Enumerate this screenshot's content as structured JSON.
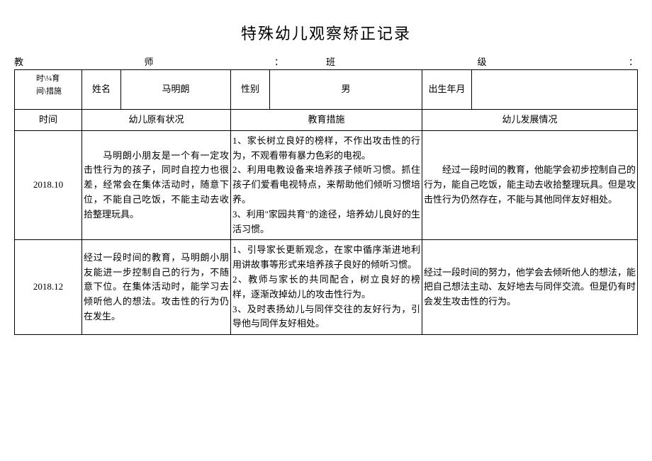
{
  "title": "特殊幼儿观察矫正记录",
  "meta": {
    "teacher_label_l": "教",
    "teacher_label_r": "师",
    "teacher_colon": "：",
    "class_label_l": "班",
    "class_label_r": "级",
    "class_colon": "："
  },
  "header": {
    "diag_top": "时\\¼育\n间\\措施",
    "name_label": "姓名",
    "name_value": "马明朗",
    "gender_label": "性别",
    "gender_value": "男",
    "birth_label": "出生年月",
    "birth_value": ""
  },
  "cols": {
    "time": "时间",
    "original": "幼儿原有状况",
    "measures": "教育措施",
    "development": "幼儿发展情况"
  },
  "rows": [
    {
      "time": "2018.10",
      "original": "　　马明朗小朋友是一个有一定攻击性行为的孩子，同时自控力也很差，经常会在集体活动时，随意下位，不能自己吃饭，不能主动去收拾整理玩具。",
      "measures": "1、家长树立良好的榜样，不作出攻击性的行为，不观看带有暴力色彩的电视。\n2、利用电教设备来培养孩子倾听习惯。抓住孩子们爱看电视特点，来帮助他们倾听习惯培养。\n3、利用\"家园共育\"的途径，培养幼儿良好的生活习惯。",
      "development": "　　经过一段时间的教育，他能学会初步控制自己的行为，能自己吃饭，能主动去收拾整理玩具。但是攻击性行为仍然存在，不能与其他同伴友好相处。"
    },
    {
      "time": "2018.12",
      "original": "经过一段时间的教育，马明朗小朋友能进一步控制自己的行为，不随意下位。在集体活动时，能学习去倾听他人的想法。攻击性的行为仍在发生。",
      "measures": "1、引导家长更新观念，在家中循序渐进地利用讲故事等形式来培养孩子良好的倾听习惯。\n2、教师与家长的共同配合，树立良好的榜样，逐渐改掉幼儿的攻击性行为。\n3、及时表扬幼儿与同伴交往的友好行为，引导他与同伴友好相处。",
      "development": "经过一段时间的努力，他学会去倾听他人的想法，能把自己想法主动、友好地去与同伴交流。但是仍有时会发生攻击性的行为。"
    }
  ]
}
